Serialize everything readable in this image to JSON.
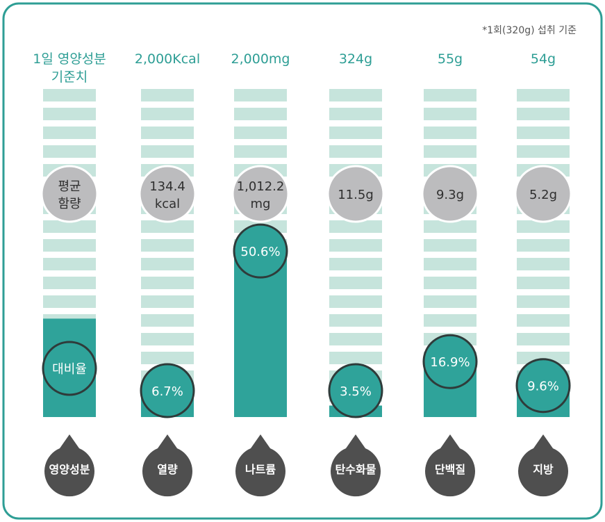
{
  "note": "*1회(320g) 섭취 기준",
  "legend": {
    "daily_value_line1": "1일 영양성분",
    "daily_value_line2": "기준치",
    "average_line1": "평균",
    "average_line2": "함량",
    "ratio": "대비율",
    "component": "영양성분"
  },
  "colors": {
    "frame": "#2e9e95",
    "stripe": "#c6e4dc",
    "fill": "#2fa39a",
    "circle_outline": "#2f3b3a",
    "avg_circle": "#bcbcbe",
    "name_marker": "#4f4f4f",
    "header_text": "#2e9e95"
  },
  "chart_data": {
    "type": "bar",
    "categories": [
      "열량",
      "나트륨",
      "탄수화물",
      "단백질",
      "지방"
    ],
    "daily_values": [
      "2,000Kcal",
      "2,000mg",
      "324g",
      "55g",
      "54g"
    ],
    "average_labels": [
      [
        "134.4",
        "kcal"
      ],
      [
        "1,012.2",
        "mg"
      ],
      [
        "11.5g"
      ],
      [
        "9.3g"
      ],
      [
        "5.2g"
      ]
    ],
    "percent_labels": [
      "6.7%",
      "50.6%",
      "3.5%",
      "16.9%",
      "9.6%"
    ],
    "values": [
      6.7,
      50.6,
      3.5,
      16.9,
      9.6
    ],
    "legend_fill_percent": 30,
    "ylim": [
      0,
      100
    ]
  }
}
